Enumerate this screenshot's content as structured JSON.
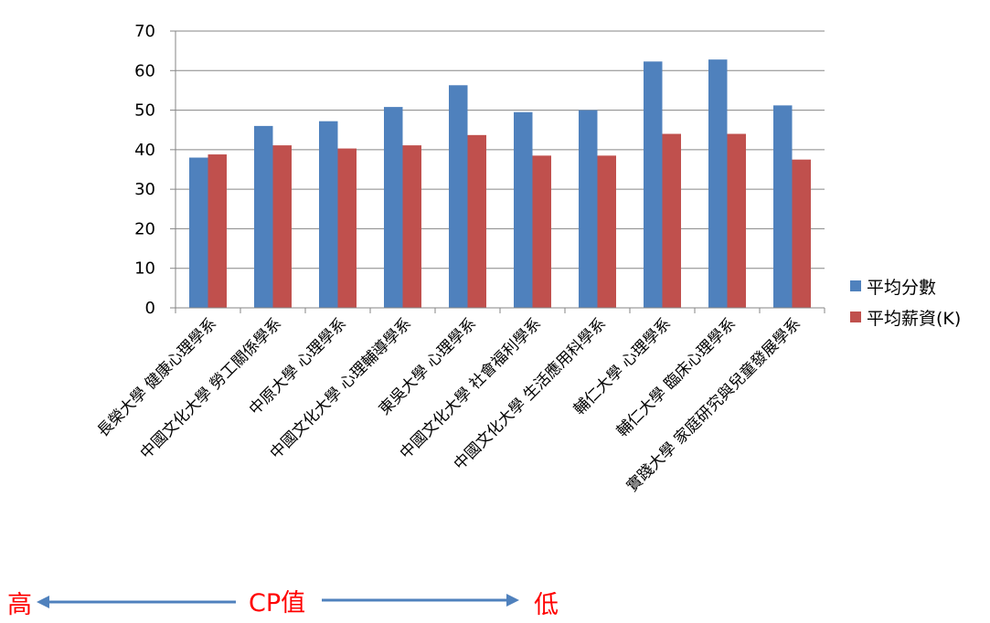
{
  "chart_data": {
    "type": "bar",
    "categories": [
      "長榮大學 健康心理學系",
      "中國文化大學 勞工關係學系",
      "中原大學 心理學系",
      "中國文化大學 心理輔導學系",
      "東吳大學 心理學系",
      "中國文化大學 社會福利學系",
      "中國文化大學 生活應用科學系",
      "輔仁大學 心理學系",
      "輔仁大學 臨床心理學系",
      "實踐大學 家庭研究與兒童發展學系"
    ],
    "series": [
      {
        "name": "平均分數",
        "color": "#4f81bd",
        "values": [
          38,
          46,
          47.2,
          50.8,
          56.3,
          49.5,
          50,
          62.3,
          62.8,
          51.2
        ]
      },
      {
        "name": "平均薪資(K)",
        "color": "#c0504d",
        "values": [
          38.8,
          41.1,
          40.3,
          41.1,
          43.7,
          38.5,
          38.5,
          44,
          44,
          37.5
        ]
      }
    ],
    "ylim": [
      0,
      70
    ],
    "yticks": [
      0,
      10,
      20,
      30,
      40,
      50,
      60,
      70
    ],
    "grid": true,
    "legend_position": "right"
  },
  "annotation": {
    "left": "高",
    "middle": "CP值",
    "right": "低",
    "color": "#ff0000",
    "arrow_color": "#4f81bd"
  }
}
